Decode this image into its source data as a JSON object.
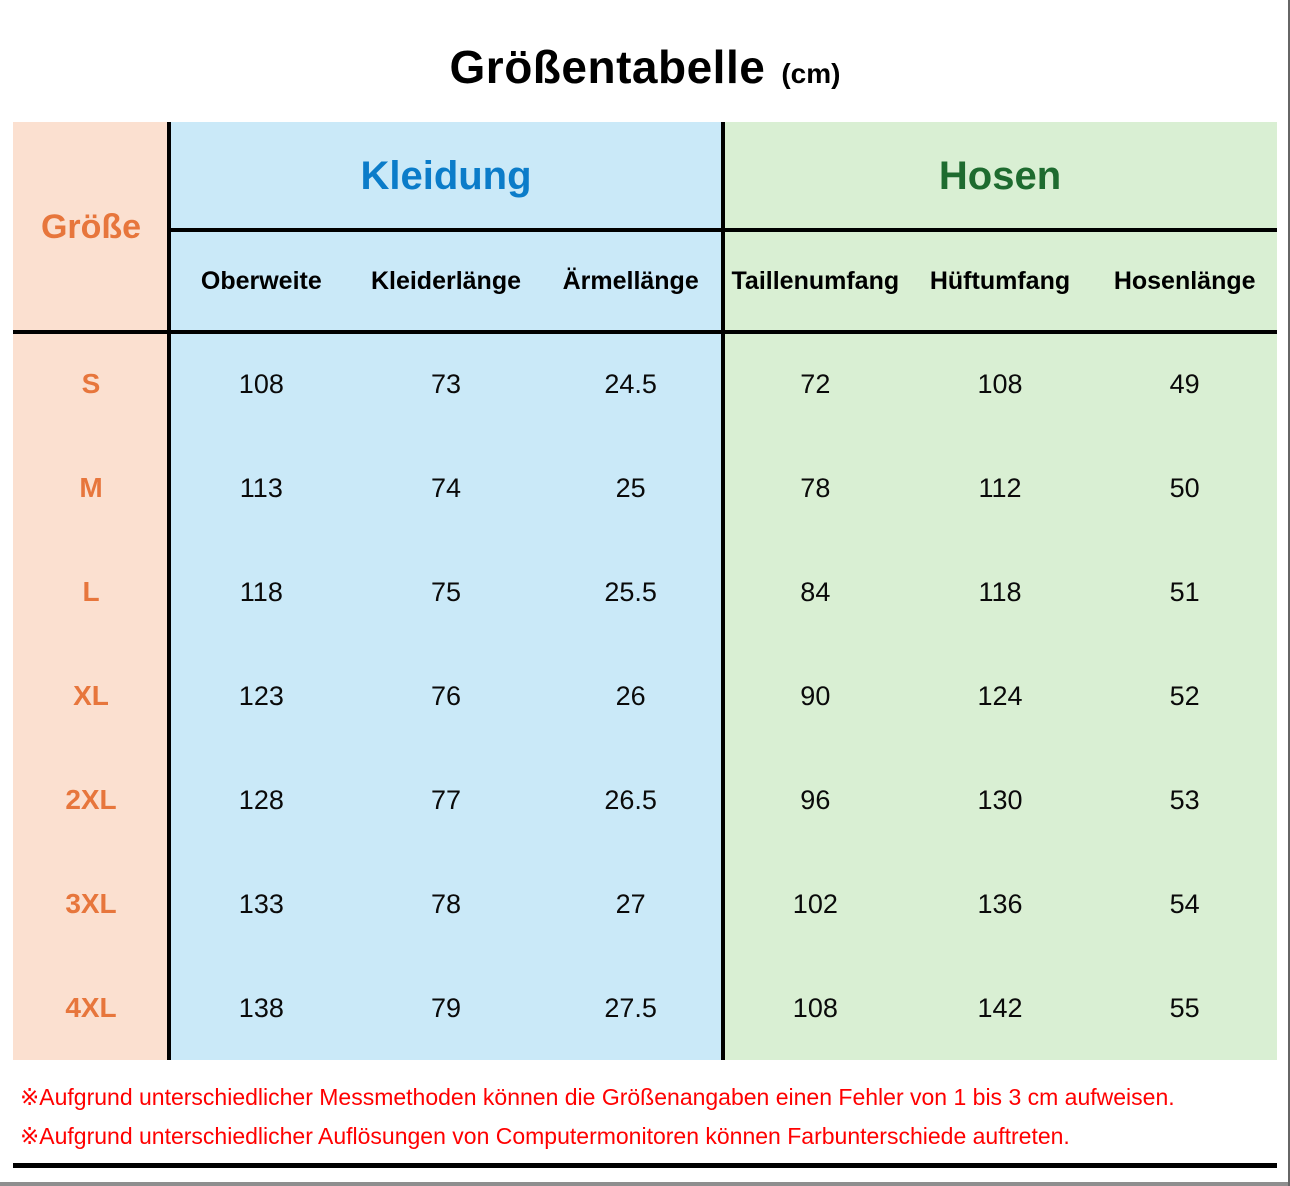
{
  "title": {
    "main": "Größentabelle",
    "unit": "(cm)"
  },
  "chart_data": {
    "type": "table",
    "title": "Größentabelle (cm)",
    "row_header": "Größe",
    "column_groups": [
      {
        "label": "Kleidung",
        "columns": [
          "Oberweite",
          "Kleiderlänge",
          "Ärmellänge"
        ]
      },
      {
        "label": "Hosen",
        "columns": [
          "Taillenumfang",
          "Hüftumfang",
          "Hosenlänge"
        ]
      }
    ],
    "rows": [
      {
        "size": "S",
        "values": [
          108,
          73,
          24.5,
          72,
          108,
          49
        ]
      },
      {
        "size": "M",
        "values": [
          113,
          74,
          25,
          78,
          112,
          50
        ]
      },
      {
        "size": "L",
        "values": [
          118,
          75,
          25.5,
          84,
          118,
          51
        ]
      },
      {
        "size": "XL",
        "values": [
          123,
          76,
          26,
          90,
          124,
          52
        ]
      },
      {
        "size": "2XL",
        "values": [
          128,
          77,
          26.5,
          96,
          130,
          53
        ]
      },
      {
        "size": "3XL",
        "values": [
          133,
          78,
          27,
          102,
          136,
          54
        ]
      },
      {
        "size": "4XL",
        "values": [
          138,
          79,
          27.5,
          108,
          142,
          55
        ]
      }
    ]
  },
  "notes": [
    "※Aufgrund unterschiedlicher Messmethoden können die Größenangaben einen Fehler von 1 bis 3 cm aufweisen.",
    "※Aufgrund unterschiedlicher Auflösungen von Computermonitoren können Farbunterschiede auftreten."
  ],
  "colors": {
    "size_column_bg": "#FBE0D0",
    "size_text": "#E7763C",
    "kleidung_bg": "#CAE9F8",
    "kleidung_text": "#0B7CC9",
    "hosen_bg": "#D9EFD3",
    "hosen_text": "#1E6B2F",
    "note_text": "#FF0000",
    "grid_line": "#000000"
  }
}
